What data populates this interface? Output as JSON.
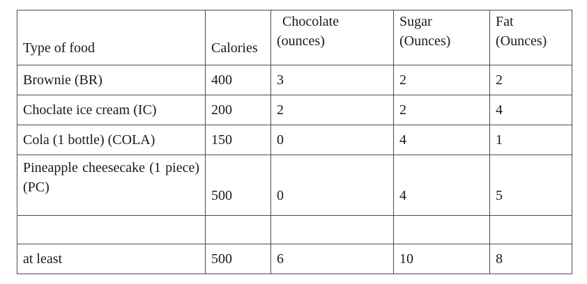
{
  "table": {
    "headers": {
      "type_of_food": "Type of food",
      "calories": "Calories",
      "chocolate_line1": "Chocolate",
      "chocolate_line2": "(ounces)",
      "sugar_line1": "Sugar",
      "sugar_line2": "(Ounces)",
      "fat_line1": "Fat",
      "fat_line2": "(Ounces)"
    },
    "rows": [
      {
        "food": "Brownie (BR)",
        "calories": "400",
        "chocolate": "3",
        "sugar": "2",
        "fat": "2"
      },
      {
        "food": "Choclate ice cream (IC)",
        "calories": "200",
        "chocolate": "2",
        "sugar": "2",
        "fat": "4"
      },
      {
        "food": "Cola (1 bottle) (COLA)",
        "calories": "150",
        "chocolate": "0",
        "sugar": "4",
        "fat": "1"
      },
      {
        "food": "Pineapple cheesecake (1 piece) (PC)",
        "calories": "500",
        "chocolate": "0",
        "sugar": "4",
        "fat": "5"
      }
    ],
    "requirement": {
      "label": "at least",
      "calories": "500",
      "chocolate": "6",
      "sugar": "10",
      "fat": "8"
    }
  }
}
